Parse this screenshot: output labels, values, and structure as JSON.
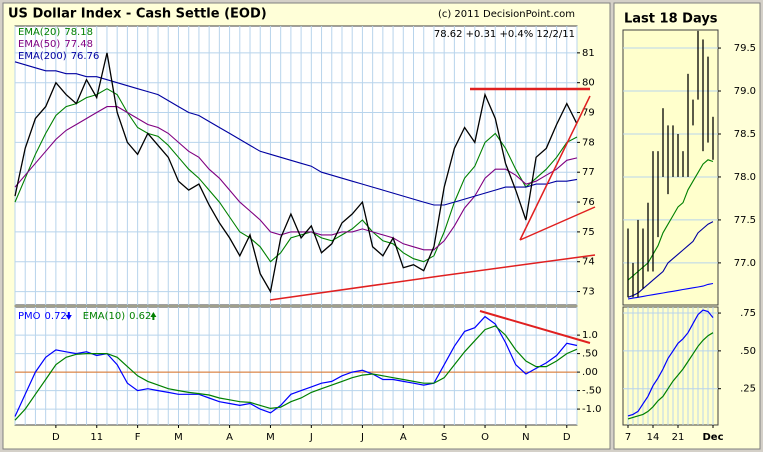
{
  "chart_data": [
    {
      "type": "price",
      "title": "US Dollar Index - Cash Settle (EOD)",
      "copyright": "(c) 2011 DecisionPoint.com",
      "quote": "78.62 +0.31 +0.4% 12/2/11",
      "color": "#000000",
      "values": [
        76.2,
        77.8,
        78.8,
        79.2,
        80.0,
        79.6,
        79.3,
        80.1,
        79.5,
        81.0,
        79.0,
        78.0,
        77.6,
        78.3,
        77.9,
        77.5,
        76.7,
        76.4,
        76.6,
        75.9,
        75.3,
        74.8,
        74.2,
        74.9,
        73.6,
        73.0,
        74.8,
        75.6,
        74.8,
        75.2,
        74.3,
        74.6,
        75.3,
        75.6,
        76.0,
        74.5,
        74.2,
        74.8,
        73.8,
        73.9,
        73.7,
        74.5,
        76.5,
        77.8,
        78.5,
        78.0,
        79.6,
        78.8,
        77.3,
        76.4,
        75.4,
        77.5,
        77.8,
        78.6,
        79.3,
        78.62
      ],
      "series": [
        {
          "name": "EMA(20)",
          "color": "#008000",
          "values": [
            76.0,
            76.8,
            77.6,
            78.3,
            78.9,
            79.2,
            79.3,
            79.5,
            79.6,
            79.8,
            79.6,
            79.0,
            78.5,
            78.3,
            78.2,
            77.9,
            77.5,
            77.1,
            76.8,
            76.4,
            76.0,
            75.5,
            75.0,
            74.8,
            74.5,
            74.0,
            74.3,
            74.8,
            74.9,
            75.0,
            74.8,
            74.7,
            74.9,
            75.1,
            75.4,
            75.0,
            74.7,
            74.6,
            74.3,
            74.1,
            74.0,
            74.2,
            75.0,
            76.0,
            76.8,
            77.2,
            78.0,
            78.3,
            77.8,
            77.1,
            76.5,
            76.8,
            77.1,
            77.5,
            78.0,
            78.18
          ]
        },
        {
          "name": "EMA(50)",
          "color": "#800080",
          "values": [
            76.5,
            76.9,
            77.3,
            77.7,
            78.1,
            78.4,
            78.6,
            78.8,
            79.0,
            79.2,
            79.2,
            79.0,
            78.8,
            78.6,
            78.5,
            78.3,
            78.0,
            77.7,
            77.5,
            77.1,
            76.8,
            76.4,
            76.0,
            75.7,
            75.4,
            75.0,
            74.9,
            75.0,
            75.0,
            75.0,
            74.9,
            74.9,
            75.0,
            75.0,
            75.1,
            75.0,
            74.9,
            74.8,
            74.6,
            74.5,
            74.4,
            74.4,
            74.7,
            75.2,
            75.8,
            76.2,
            76.8,
            77.1,
            77.1,
            76.9,
            76.6,
            76.7,
            76.9,
            77.1,
            77.4,
            77.48
          ]
        },
        {
          "name": "EMA(200)",
          "color": "#0000a0",
          "values": [
            80.7,
            80.6,
            80.5,
            80.4,
            80.4,
            80.3,
            80.3,
            80.2,
            80.2,
            80.1,
            80.0,
            79.9,
            79.8,
            79.7,
            79.6,
            79.4,
            79.2,
            79.0,
            78.9,
            78.7,
            78.5,
            78.3,
            78.1,
            77.9,
            77.7,
            77.6,
            77.5,
            77.4,
            77.3,
            77.2,
            77.0,
            76.9,
            76.8,
            76.7,
            76.6,
            76.5,
            76.4,
            76.3,
            76.2,
            76.1,
            76.0,
            75.9,
            75.9,
            76.0,
            76.1,
            76.2,
            76.3,
            76.4,
            76.5,
            76.5,
            76.5,
            76.6,
            76.6,
            76.7,
            76.7,
            76.76
          ]
        }
      ],
      "ylim": [
        72.55,
        81.9
      ],
      "yticks": [
        73,
        74,
        75,
        76,
        77,
        78,
        79,
        80,
        81
      ],
      "grid": true
    },
    {
      "type": "line",
      "categories": [
        null,
        null,
        null,
        null,
        "D",
        null,
        null,
        null,
        "11",
        null,
        null,
        null,
        "F",
        null,
        null,
        null,
        "M",
        null,
        null,
        null,
        null,
        "A",
        null,
        null,
        null,
        "M",
        null,
        null,
        null,
        "J",
        null,
        null,
        null,
        null,
        "J",
        null,
        null,
        null,
        "A",
        null,
        null,
        null,
        "S",
        null,
        null,
        null,
        "O",
        null,
        null,
        null,
        "N",
        null,
        null,
        null,
        "D",
        null
      ],
      "series": [
        {
          "name": "PMO",
          "color": "#0000ff",
          "values": [
            -1.2,
            -0.6,
            0.0,
            0.4,
            0.6,
            0.55,
            0.5,
            0.55,
            0.45,
            0.5,
            0.2,
            -0.3,
            -0.5,
            -0.45,
            -0.5,
            -0.55,
            -0.6,
            -0.6,
            -0.6,
            -0.7,
            -0.8,
            -0.85,
            -0.9,
            -0.85,
            -1.0,
            -1.1,
            -0.9,
            -0.6,
            -0.5,
            -0.4,
            -0.3,
            -0.25,
            -0.1,
            0.0,
            0.05,
            -0.05,
            -0.2,
            -0.2,
            -0.25,
            -0.3,
            -0.35,
            -0.3,
            0.2,
            0.7,
            1.1,
            1.2,
            1.5,
            1.3,
            0.8,
            0.2,
            -0.05,
            0.1,
            0.25,
            0.45,
            0.78,
            0.72
          ]
        },
        {
          "name": "EMA(10)",
          "color": "#008000",
          "values": [
            -1.3,
            -1.0,
            -0.6,
            -0.2,
            0.2,
            0.4,
            0.48,
            0.5,
            0.5,
            0.5,
            0.4,
            0.15,
            -0.1,
            -0.25,
            -0.35,
            -0.45,
            -0.5,
            -0.55,
            -0.58,
            -0.62,
            -0.7,
            -0.75,
            -0.8,
            -0.82,
            -0.9,
            -0.98,
            -0.95,
            -0.8,
            -0.7,
            -0.55,
            -0.45,
            -0.35,
            -0.25,
            -0.15,
            -0.08,
            -0.05,
            -0.1,
            -0.15,
            -0.2,
            -0.25,
            -0.3,
            -0.3,
            -0.15,
            0.2,
            0.55,
            0.85,
            1.15,
            1.25,
            1.0,
            0.6,
            0.3,
            0.15,
            0.15,
            0.3,
            0.5,
            0.62
          ]
        }
      ],
      "ylim": [
        -1.43,
        1.76
      ],
      "yticks": [
        {
          "value": 1.0,
          "label": "1.0"
        },
        {
          "value": 0.5,
          "label": ".50"
        },
        {
          "value": 0,
          "label": ".00"
        },
        {
          "value": -0.5,
          "label": "-.50"
        },
        {
          "value": -1.0,
          "label": "-1.0"
        }
      ],
      "zero_line_color": "#e07020",
      "grid": true
    },
    {
      "type": "hilo",
      "title": "Last 18 Days",
      "color": "#000000",
      "high": [
        77.4,
        77.0,
        77.5,
        77.4,
        77.7,
        78.3,
        78.3,
        78.8,
        78.6,
        78.6,
        78.5,
        78.3,
        79.2,
        78.9,
        79.7,
        79.6,
        79.4,
        78.7
      ],
      "low": [
        76.6,
        76.6,
        76.6,
        76.7,
        76.9,
        76.9,
        77.3,
        78.0,
        77.8,
        78.0,
        78.0,
        78.0,
        78.0,
        78.6,
        78.9,
        78.3,
        78.4,
        78.2
      ],
      "series": [
        {
          "color": "#008000",
          "values": [
            76.8,
            76.85,
            76.9,
            76.95,
            77.0,
            77.1,
            77.2,
            77.35,
            77.45,
            77.55,
            77.65,
            77.7,
            77.85,
            77.95,
            78.05,
            78.15,
            78.2,
            78.18
          ]
        },
        {
          "color": "#0000a0",
          "values": [
            76.6,
            76.62,
            76.65,
            76.7,
            76.75,
            76.8,
            76.85,
            76.9,
            77.0,
            77.05,
            77.1,
            77.15,
            77.2,
            77.25,
            77.35,
            77.4,
            77.45,
            77.48
          ]
        },
        {
          "color": "#0000ff",
          "values": [
            76.58,
            76.59,
            76.6,
            76.61,
            76.62,
            76.63,
            76.64,
            76.65,
            76.66,
            76.67,
            76.68,
            76.69,
            76.7,
            76.71,
            76.72,
            76.73,
            76.75,
            76.76
          ]
        }
      ],
      "ylim": [
        76.51,
        79.71
      ],
      "yticks": [
        {
          "value": 77.0,
          "label": "77.0"
        },
        {
          "value": 77.5,
          "label": "77.5"
        },
        {
          "value": 78.0,
          "label": "78.0"
        },
        {
          "value": 78.5,
          "label": "78.5"
        },
        {
          "value": 79.0,
          "label": "79.0"
        },
        {
          "value": 79.5,
          "label": "79.5"
        }
      ],
      "grid": true
    },
    {
      "type": "line",
      "categories": [
        "7",
        null,
        null,
        null,
        null,
        "14",
        null,
        null,
        null,
        null,
        "21",
        null,
        null,
        null,
        null,
        null,
        null,
        "Dec"
      ],
      "series": [
        {
          "color": "#0000ff",
          "values": [
            0.07,
            0.08,
            0.1,
            0.15,
            0.2,
            0.27,
            0.32,
            0.38,
            0.45,
            0.5,
            0.55,
            0.58,
            0.62,
            0.68,
            0.74,
            0.77,
            0.76,
            0.72
          ]
        },
        {
          "color": "#008000",
          "values": [
            0.05,
            0.06,
            0.07,
            0.08,
            0.1,
            0.13,
            0.17,
            0.2,
            0.25,
            0.3,
            0.34,
            0.38,
            0.43,
            0.48,
            0.53,
            0.57,
            0.6,
            0.62
          ]
        }
      ],
      "ylim": [
        0.01,
        0.79
      ],
      "yticks": [
        {
          "value": 0.25,
          "label": ".25"
        },
        {
          "value": 0.5,
          "label": ".50"
        },
        {
          "value": 0.75,
          "label": ".75"
        }
      ],
      "grid": true
    }
  ]
}
